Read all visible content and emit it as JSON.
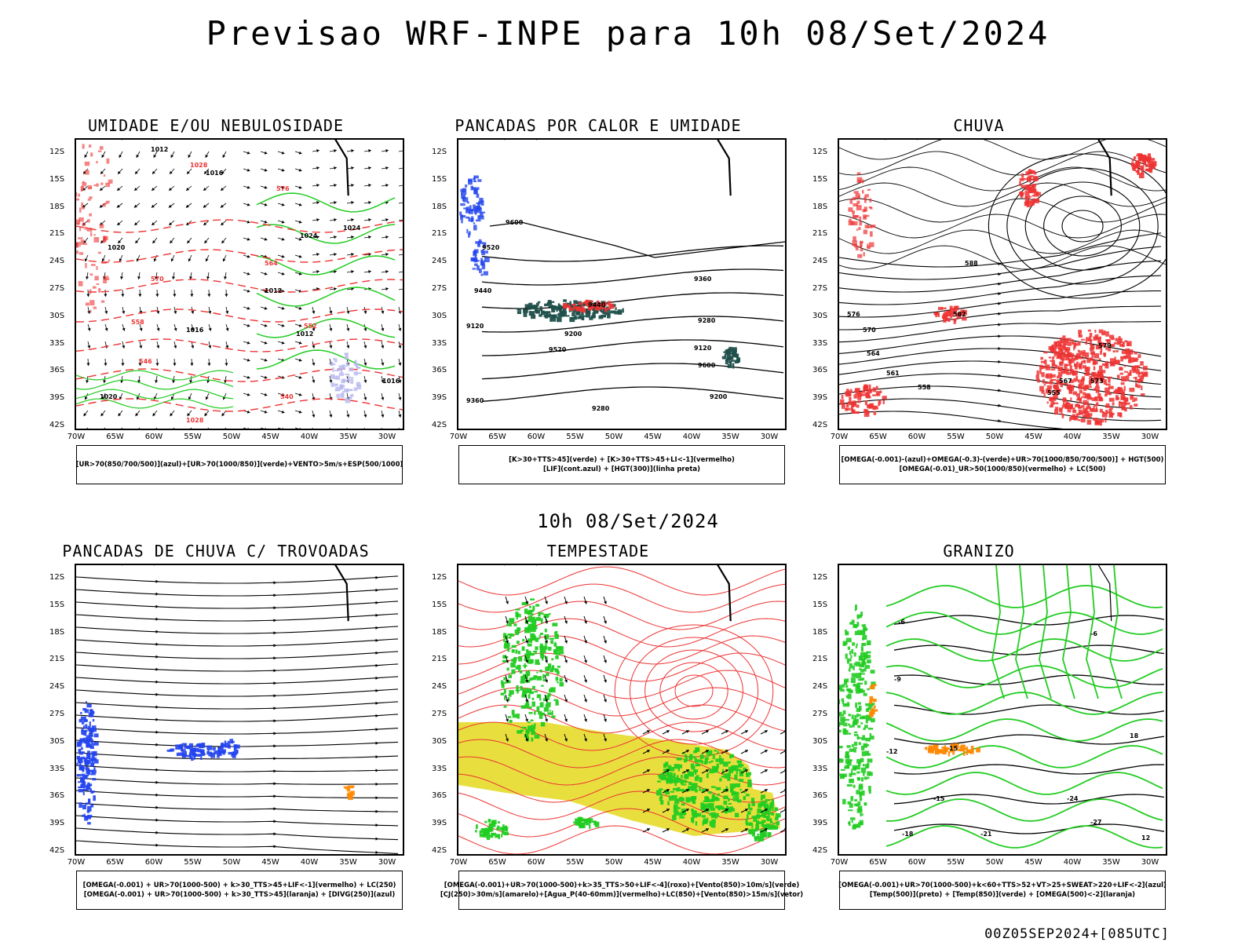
{
  "header": {
    "title": "Previsao WRF-INPE  para 10h 08/Set/2024",
    "mid_title": "10h 08/Set/2024",
    "run_label": "00Z05SEP2024+[085UTC]"
  },
  "axes": {
    "lat_labels": [
      "12S",
      "15S",
      "18S",
      "21S",
      "24S",
      "27S",
      "30S",
      "33S",
      "36S",
      "39S",
      "42S"
    ],
    "lon_labels": [
      "70W",
      "65W",
      "60W",
      "55W",
      "50W",
      "45W",
      "40W",
      "35W",
      "30W"
    ]
  },
  "colors": {
    "red": "#ee3333",
    "green": "#22cc22",
    "blue": "#2244ee",
    "black": "#000000",
    "lavender": "#b8b8f0",
    "teal": "#1f4f4a",
    "yellow": "#e6dc2a",
    "orange": "#ff8800"
  },
  "panels": [
    {
      "title": "UMIDADE E/OU NEBULOSIDADE",
      "legend": [
        "[UR>70(850/700/500)](azul)+[UR>70(1000/850)](verde)+VENTO>5m/s+ESP(500/1000)"
      ],
      "contour_labels": [
        "1012",
        "1016",
        "1020",
        "1024",
        "1028",
        "576",
        "570",
        "564",
        "558",
        "552",
        "546",
        "540"
      ]
    },
    {
      "title": "PANCADAS POR CALOR E UMIDADE",
      "legend": [
        "[K>30+TTS>45](verde) + [K>30+TTS>45+LI<-1](vermelho)",
        "[LIF](cont.azul) + [HGT(300)](linha preta)"
      ],
      "contour_labels": [
        "9600",
        "9520",
        "9440",
        "9360",
        "9280",
        "9200",
        "9120"
      ]
    },
    {
      "title": "CHUVA",
      "legend": [
        "[OMEGA(-0.001)-(azul)+OMEGA(-0.3)-(verde)+UR>70(1000/850/700/500)] + HGT(500)",
        "[OMEGA(-0.01)_UR>50(1000/850)(vermelho) + LC(500)"
      ],
      "contour_labels": [
        "588",
        "582",
        "576",
        "570",
        "564",
        "561",
        "558",
        "555",
        "567",
        "573",
        "579"
      ]
    },
    {
      "title": "PANCADAS DE CHUVA C/ TROVOADAS",
      "legend": [
        "[OMEGA(-0.001) + UR>70(1000-500) + k>30_TTS>45+LIF<-1](vermelho) + LC(250)",
        "[OMEGA(-0.001) + UR>70(1000-500) + k>30_TTS>45](laranja) + [DIVG(250)](azul)"
      ],
      "contour_labels": []
    },
    {
      "title": "TEMPESTADE",
      "legend": [
        "[OMEGA(-0.001)+UR>70(1000-500)+k>35_TTS>50+LIF<-4](roxo)+[Vento(850)>10m/s](verde)",
        "[CJ(250)>30m/s](amarelo)+[Agua_P(40-60mm)](vermelho)+LC(850)+[Vento(850)>15m/s](vetor)"
      ],
      "contour_labels": []
    },
    {
      "title": "GRANIZO",
      "legend": [
        "[OMEGA(-0.001)+UR>70(1000-500)+k<60+TTS>52+VT>25+SWEAT>220+LIF<-2](azul)",
        "[Temp(500)](preto) + [Temp(850)](verde) + [OMEGA(500)<-2](laranja)"
      ],
      "contour_labels": [
        "-6",
        "-9",
        "-12",
        "-15",
        "-18",
        "-21",
        "-24",
        "-27",
        "12",
        "15",
        "18"
      ]
    }
  ]
}
